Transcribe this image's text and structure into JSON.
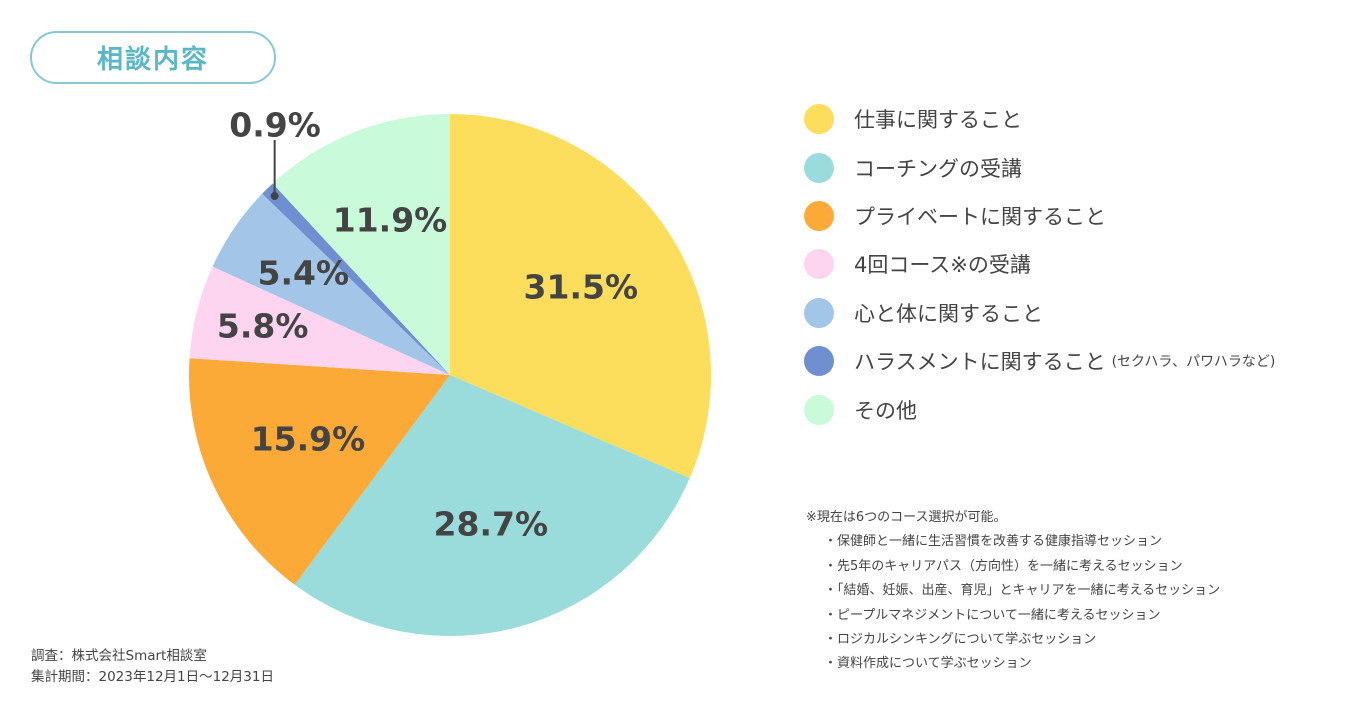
{
  "header": {
    "title": "相談内容"
  },
  "chart_data": {
    "type": "pie",
    "start_angle_deg": 0,
    "direction": "clockwise",
    "slices": [
      {
        "label": "仕事に関すること",
        "value": 31.5,
        "display": "31.5%",
        "color": "#fcde5c"
      },
      {
        "label": "コーチングの受講",
        "value": 28.7,
        "display": "28.7%",
        "color": "#9adcdc"
      },
      {
        "label": "プライベートに関すること",
        "value": 15.9,
        "display": "15.9%",
        "color": "#fbaa37"
      },
      {
        "label": "4回コース※の受講",
        "value": 5.8,
        "display": "5.8%",
        "color": "#fdd5f0"
      },
      {
        "label": "心と体に関すること",
        "value": 5.4,
        "display": "5.4%",
        "color": "#a3c5e8"
      },
      {
        "label": "ハラスメントに関すること",
        "note": "(セクハラ、パワハラなど)",
        "value": 0.9,
        "display": "0.9%",
        "color": "#6f8fd1"
      },
      {
        "label": "その他",
        "value": 11.9,
        "display": "11.9%",
        "color": "#c9fad9"
      }
    ],
    "legend_position": "right"
  },
  "footnote": {
    "heading": "※現在は6つのコース選択が可能。",
    "items": [
      "・保健師と一緒に生活習慣を改善する健康指導セッション",
      "・先5年のキャリアパス（方向性）を一緒に考えるセッション",
      "・「結婚、妊娠、出産、育児」とキャリアを一緒に考えるセッション",
      "・ピープルマネジメントについて一緒に考えるセッション",
      "・ロジカルシンキングについて学ぶセッション",
      "・資料作成について学ぶセッション"
    ]
  },
  "source": {
    "survey": "調査：株式会社Smart相談室",
    "period": "集計期間：2023年12月1日〜12月31日"
  }
}
